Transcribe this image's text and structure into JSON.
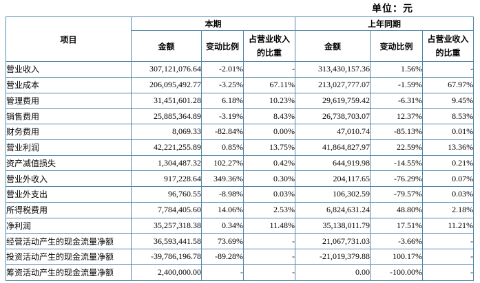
{
  "unit_label": "单位：元",
  "table": {
    "item_header": "项目",
    "groups": [
      {
        "label": "本期"
      },
      {
        "label": "上年同期"
      }
    ],
    "sub_headers": {
      "amount": "金额",
      "change": "变动比例",
      "ratio": "占营业收入\n的比重"
    },
    "border_color": "#4e86aa",
    "rows": [
      {
        "label": "营业收入",
        "cur_amount": "307,121,076.64",
        "cur_change": "-2.01%",
        "cur_ratio": "-",
        "prev_amount": "313,430,157.36",
        "prev_change": "1.56%",
        "prev_ratio": "-"
      },
      {
        "label": "营业成本",
        "cur_amount": "206,095,492.77",
        "cur_change": "-3.25%",
        "cur_ratio": "67.11%",
        "prev_amount": "213,027,777.07",
        "prev_change": "-1.59%",
        "prev_ratio": "67.97%"
      },
      {
        "label": "管理费用",
        "cur_amount": "31,451,601.28",
        "cur_change": "6.18%",
        "cur_ratio": "10.23%",
        "prev_amount": "29,619,759.42",
        "prev_change": "-6.31%",
        "prev_ratio": "9.45%"
      },
      {
        "label": "销售费用",
        "cur_amount": "25,885,364.89",
        "cur_change": "-3.19%",
        "cur_ratio": "8.43%",
        "prev_amount": "26,738,703.07",
        "prev_change": "12.37%",
        "prev_ratio": "8.53%"
      },
      {
        "label": "财务费用",
        "cur_amount": "8,069.33",
        "cur_change": "-82.84%",
        "cur_ratio": "0.00%",
        "prev_amount": "47,010.74",
        "prev_change": "-85.13%",
        "prev_ratio": "0.01%"
      },
      {
        "label": "营业利润",
        "cur_amount": "42,221,255.89",
        "cur_change": "0.85%",
        "cur_ratio": "13.75%",
        "prev_amount": "41,864,827.97",
        "prev_change": "22.59%",
        "prev_ratio": "13.36%"
      },
      {
        "label": "资产减值损失",
        "cur_amount": "1,304,487.32",
        "cur_change": "102.27%",
        "cur_ratio": "0.42%",
        "prev_amount": "644,919.98",
        "prev_change": "-14.55%",
        "prev_ratio": "0.21%"
      },
      {
        "label": "营业外收入",
        "cur_amount": "917,228.64",
        "cur_change": "349.36%",
        "cur_ratio": "0.30%",
        "prev_amount": "204,117.65",
        "prev_change": "-76.29%",
        "prev_ratio": "0.07%"
      },
      {
        "label": "营业外支出",
        "cur_amount": "96,760.55",
        "cur_change": "-8.98%",
        "cur_ratio": "0.03%",
        "prev_amount": "106,302.59",
        "prev_change": "-79.57%",
        "prev_ratio": "0.03%"
      },
      {
        "label": "所得税费用",
        "cur_amount": "7,784,405.60",
        "cur_change": "14.06%",
        "cur_ratio": "2.53%",
        "prev_amount": "6,824,631.24",
        "prev_change": "48.80%",
        "prev_ratio": "2.18%"
      },
      {
        "label": "净利润",
        "cur_amount": "35,257,318.38",
        "cur_change": "0.34%",
        "cur_ratio": "11.48%",
        "prev_amount": "35,138,011.79",
        "prev_change": "17.51%",
        "prev_ratio": "11.21%"
      },
      {
        "label": "经营活动产生的现金流量净额",
        "cur_amount": "36,593,441.58",
        "cur_change": "73.69%",
        "cur_ratio": "-",
        "prev_amount": "21,067,731.03",
        "prev_change": "-3.66%",
        "prev_ratio": "-"
      },
      {
        "label": "投资活动产生的现金流量净额",
        "cur_amount": "-39,786,196.78",
        "cur_change": "-89.28%",
        "cur_ratio": "-",
        "prev_amount": "-21,019,379.88",
        "prev_change": "100.17%",
        "prev_ratio": "-"
      },
      {
        "label": "筹资活动产生的现金流量净额",
        "cur_amount": "2,400,000.00",
        "cur_change": "-",
        "cur_ratio": "-",
        "prev_amount": "0.00",
        "prev_change": "-100.00%",
        "prev_ratio": "-"
      }
    ]
  }
}
